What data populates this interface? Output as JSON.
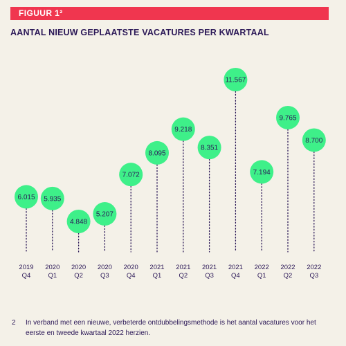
{
  "figure": {
    "label": "FIGUUR 1²"
  },
  "colors": {
    "banner": "#f0364f",
    "bubble": "#3ef089",
    "text": "#2b1857",
    "background": "#f4f1e8"
  },
  "chart_data": {
    "type": "scatter",
    "title": "AANTAL NIEUW GEPLAATSTE VACATURES PER KWARTAAL",
    "categories": [
      [
        "2019",
        "Q4"
      ],
      [
        "2020",
        "Q1"
      ],
      [
        "2020",
        "Q2"
      ],
      [
        "2020",
        "Q3"
      ],
      [
        "2020",
        "Q4"
      ],
      [
        "2021",
        "Q1"
      ],
      [
        "2021",
        "Q2"
      ],
      [
        "2021",
        "Q3"
      ],
      [
        "2021",
        "Q4"
      ],
      [
        "2022",
        "Q1"
      ],
      [
        "2022",
        "Q2"
      ],
      [
        "2022",
        "Q3"
      ]
    ],
    "values": [
      6015,
      5935,
      4848,
      5207,
      7072,
      8095,
      9218,
      8351,
      11567,
      7194,
      9765,
      8700
    ],
    "labels": [
      "6.015",
      "5.935",
      "4.848",
      "5.207",
      "7.072",
      "8.095",
      "9.218",
      "8.351",
      "11.567",
      "7.194",
      "9.765",
      "8.700"
    ],
    "ylim": [
      0,
      12000
    ],
    "marker": "circle-with-dotted-stem",
    "grid": false,
    "legend": "none"
  },
  "footnote": {
    "number": "2",
    "text": "In verband met een nieuwe, verbeterde ontdubbelingsmethode is het aantal vacatures voor het eerste en tweede kwartaal 2022 herzien."
  }
}
